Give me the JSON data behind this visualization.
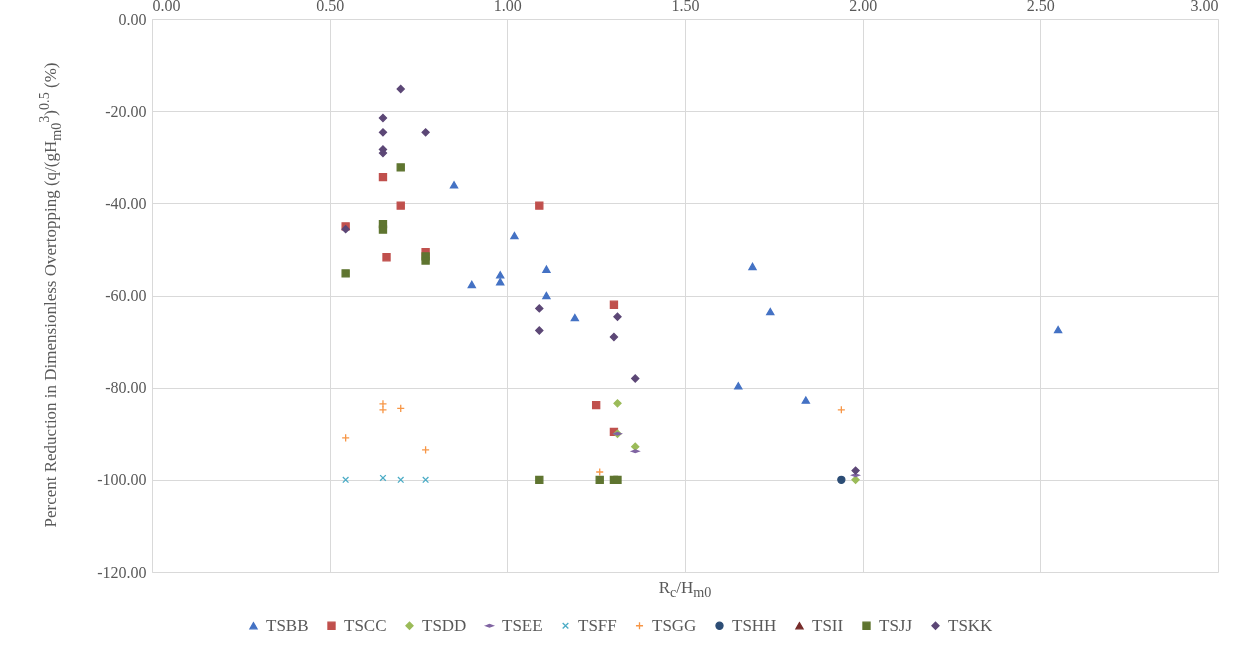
{
  "chart_data": {
    "type": "scatter",
    "xlabel": "R$_{c}$/H$_{m0}$",
    "ylabel": "Percent Reduction in Dimensionless Overtopping (q/(gH$_{m0}$$^{3}$)$^{0.5}$ (%)",
    "xlim": [
      0,
      3
    ],
    "ylim": [
      -120,
      0
    ],
    "xticks": [
      {
        "value": 0,
        "label": "0.00"
      },
      {
        "value": 0.5,
        "label": "0.50"
      },
      {
        "value": 1,
        "label": "1.00"
      },
      {
        "value": 1.5,
        "label": "1.50"
      },
      {
        "value": 2,
        "label": "2.00"
      },
      {
        "value": 2.5,
        "label": "2.50"
      },
      {
        "value": 3,
        "label": "3.00"
      }
    ],
    "yticks": [
      {
        "value": 0,
        "label": "0.00"
      },
      {
        "value": -20,
        "label": "-20.00"
      },
      {
        "value": -40,
        "label": "-40.00"
      },
      {
        "value": -60,
        "label": "-60.00"
      },
      {
        "value": -80,
        "label": "-80.00"
      },
      {
        "value": -100,
        "label": "-100.00"
      },
      {
        "value": -120,
        "label": "-120.00"
      }
    ],
    "grid": true,
    "legend": "bottom",
    "series": [
      {
        "name": "TSBB",
        "color": "#4472c4",
        "marker": "triangle",
        "x": [
          0.85,
          0.9,
          0.98,
          0.98,
          1.02,
          1.11,
          1.11,
          1.19,
          1.65,
          1.69,
          1.74,
          1.84,
          2.55
        ],
        "values": [
          -36,
          -57.6,
          -55.5,
          -57,
          -47,
          -54.3,
          -60,
          -64.8,
          -79.6,
          -53.7,
          -63.5,
          -82.7,
          -67.4
        ]
      },
      {
        "name": "TSCC",
        "color": "#c0504d",
        "marker": "square",
        "x": [
          0.545,
          0.65,
          0.7,
          0.66,
          0.77,
          1.09,
          1.3,
          1.25,
          1.3
        ],
        "values": [
          -45,
          -34.3,
          -40.5,
          -51.7,
          -50.6,
          -40.5,
          -62,
          -83.8,
          -89.6
        ]
      },
      {
        "name": "TSDD",
        "color": "#9bbb59",
        "marker": "diamond",
        "x": [
          1.31,
          1.31,
          1.36,
          1.98
        ],
        "values": [
          -83.4,
          -90,
          -92.8,
          -100
        ]
      },
      {
        "name": "TSEE",
        "color": "#8064a2",
        "x": [
          1.31,
          1.36,
          1.98
        ],
        "values": [
          -90,
          -93.8,
          -99
        ]
      },
      {
        "name": "TSFF",
        "color": "#4bacc6",
        "marker": "x",
        "x": [
          0.545,
          0.65,
          0.7,
          0.77
        ],
        "values": [
          -100,
          -99.6,
          -100,
          -100
        ]
      },
      {
        "name": "TSGG",
        "color": "#f79646",
        "marker": "cross",
        "x": [
          0.545,
          0.65,
          0.65,
          0.7,
          0.77,
          1.26,
          1.94
        ],
        "values": [
          -90.9,
          -83.5,
          -84.8,
          -84.5,
          -93.5,
          -98.3,
          -84.8
        ]
      },
      {
        "name": "TSHH",
        "color": "#2c4d75",
        "marker": "circle",
        "x": [
          1.94
        ],
        "values": [
          -100
        ]
      },
      {
        "name": "TSII",
        "color": "#772c2a",
        "marker": "triangle"
      },
      {
        "name": "TSJJ",
        "color": "#5f7530",
        "marker": "square",
        "x": [
          0.545,
          0.7,
          0.65,
          0.65,
          0.77,
          0.77,
          1.09,
          1.26,
          1.3,
          1.31
        ],
        "values": [
          -55.2,
          -32.2,
          -44.5,
          -45.7,
          -51.5,
          -52.4,
          -100,
          -100,
          -100,
          -100
        ]
      },
      {
        "name": "TSKK",
        "color": "#5c4776",
        "marker": "diamond",
        "x": [
          0.7,
          0.65,
          0.65,
          0.77,
          0.65,
          0.65,
          0.545,
          1.09,
          1.09,
          1.31,
          1.3,
          1.36,
          1.98
        ],
        "values": [
          -15.2,
          -21.5,
          -24.6,
          -24.6,
          -28.3,
          -29.1,
          -45.6,
          -62.8,
          -67.6,
          -64.6,
          -69,
          -78,
          -98
        ]
      }
    ]
  }
}
